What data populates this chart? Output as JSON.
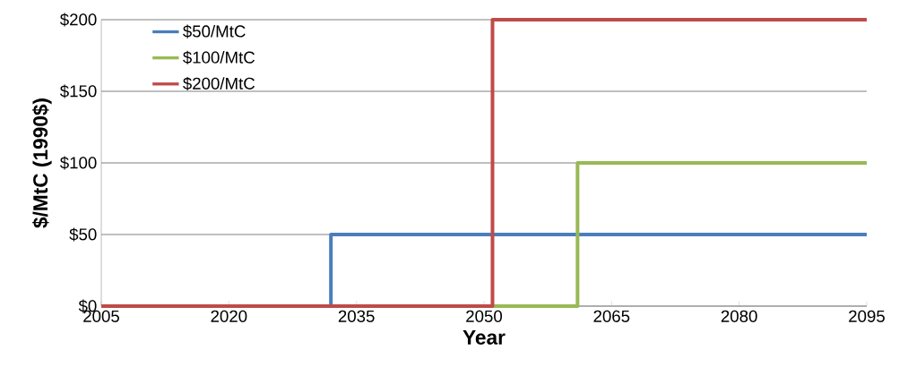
{
  "chart_data": {
    "type": "line",
    "xlabel": "Year",
    "ylabel": "$/MtC (1990$)",
    "xlim": [
      2005,
      2095
    ],
    "xticks": [
      2005,
      2020,
      2035,
      2050,
      2065,
      2080,
      2095
    ],
    "ylim": [
      0,
      200
    ],
    "yticks": [
      {
        "value": 0,
        "label": "$0"
      },
      {
        "value": 50,
        "label": "$50"
      },
      {
        "value": 100,
        "label": "$100"
      },
      {
        "value": 150,
        "label": "$150"
      },
      {
        "value": 200,
        "label": "$200"
      }
    ],
    "grid": "y",
    "legend": "top left",
    "line_style": "solid",
    "marker": "none",
    "series": [
      {
        "name": "$50/MtC",
        "color": "#4a7ebb",
        "x": [
          2032,
          2032,
          2095
        ],
        "values": [
          0,
          50,
          50
        ]
      },
      {
        "name": "$100/MtC",
        "color": "#98b954",
        "x": [
          2051,
          2061,
          2061,
          2095
        ],
        "values": [
          0,
          0,
          100,
          100
        ]
      },
      {
        "name": "$200/MtC",
        "color": "#be4b48",
        "x": [
          2005,
          2051,
          2051,
          2095
        ],
        "values": [
          0,
          0,
          200,
          200
        ]
      }
    ]
  }
}
